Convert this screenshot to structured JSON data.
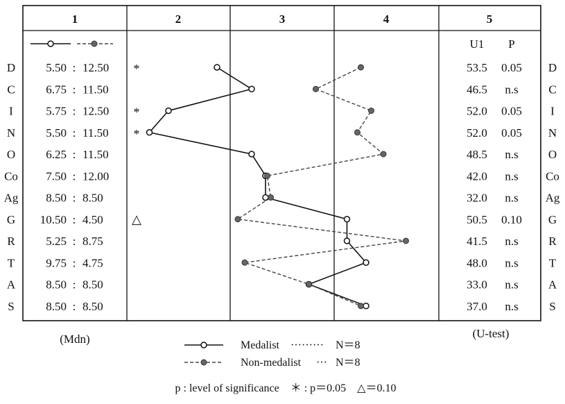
{
  "chart_data": {
    "type": "line",
    "column_headers": [
      "1",
      "2",
      "3",
      "4",
      "5"
    ],
    "scales": [
      "D",
      "C",
      "I",
      "N",
      "O",
      "Co",
      "Ag",
      "G",
      "R",
      "T",
      "A",
      "S"
    ],
    "medians": [
      {
        "medalist": "5.50",
        "non_medalist": "12.50"
      },
      {
        "medalist": "6.75",
        "non_medalist": "11.50"
      },
      {
        "medalist": "5.75",
        "non_medalist": "12.50"
      },
      {
        "medalist": "5.50",
        "non_medalist": "11.50"
      },
      {
        "medalist": "6.25",
        "non_medalist": "11.50"
      },
      {
        "medalist": "7.50",
        "non_medalist": "12.00"
      },
      {
        "medalist": "8.50",
        "non_medalist": "8.50"
      },
      {
        "medalist": "10.50",
        "non_medalist": "4.50"
      },
      {
        "medalist": "5.25",
        "non_medalist": "8.75"
      },
      {
        "medalist": "9.75",
        "non_medalist": "4.75"
      },
      {
        "medalist": "8.50",
        "non_medalist": "8.50"
      },
      {
        "medalist": "8.50",
        "non_medalist": "8.50"
      }
    ],
    "median_separator": ":",
    "significance_marks": [
      "*",
      "",
      "*",
      "*",
      "",
      "",
      "",
      "△",
      "",
      "",
      "",
      ""
    ],
    "u_header": "U1",
    "p_header": "P",
    "u_values": [
      "53.5",
      "46.5",
      "52.0",
      "52.0",
      "48.5",
      "42.0",
      "32.0",
      "50.5",
      "41.5",
      "48.0",
      "33.0",
      "37.0"
    ],
    "p_values": [
      "0.05",
      "n.s",
      "0.05",
      "0.05",
      "n.s",
      "n.s",
      "n.s",
      "0.10",
      "n.s",
      "n.s",
      "n.s",
      "n.s"
    ],
    "series": [
      {
        "name": "Medalist",
        "style": "solid",
        "marker": "open-circle",
        "color": "#111111",
        "values": [
          5.2,
          7.2,
          2.4,
          1.3,
          7.2,
          8.0,
          8.0,
          12.7,
          12.7,
          13.8,
          10.5,
          13.8
        ]
      },
      {
        "name": "Non-medalist",
        "style": "dashed",
        "marker": "filled-circle",
        "color": "#555555",
        "values": [
          13.5,
          10.9,
          14.1,
          13.3,
          14.8,
          8.1,
          8.3,
          6.4,
          16.1,
          6.8,
          10.5,
          13.5
        ]
      }
    ],
    "x_range": [
      0,
      18
    ],
    "mdn_label": "(Mdn)",
    "utest_label": "(U-test)",
    "legend": [
      {
        "name": "Medalist",
        "dots": "·········",
        "n": "N＝8"
      },
      {
        "name": "Non-medalist",
        "dots": "···",
        "n": "N＝8"
      }
    ],
    "footnote": "p : level of significance　＊ : p＝0.05　△＝0.10"
  }
}
